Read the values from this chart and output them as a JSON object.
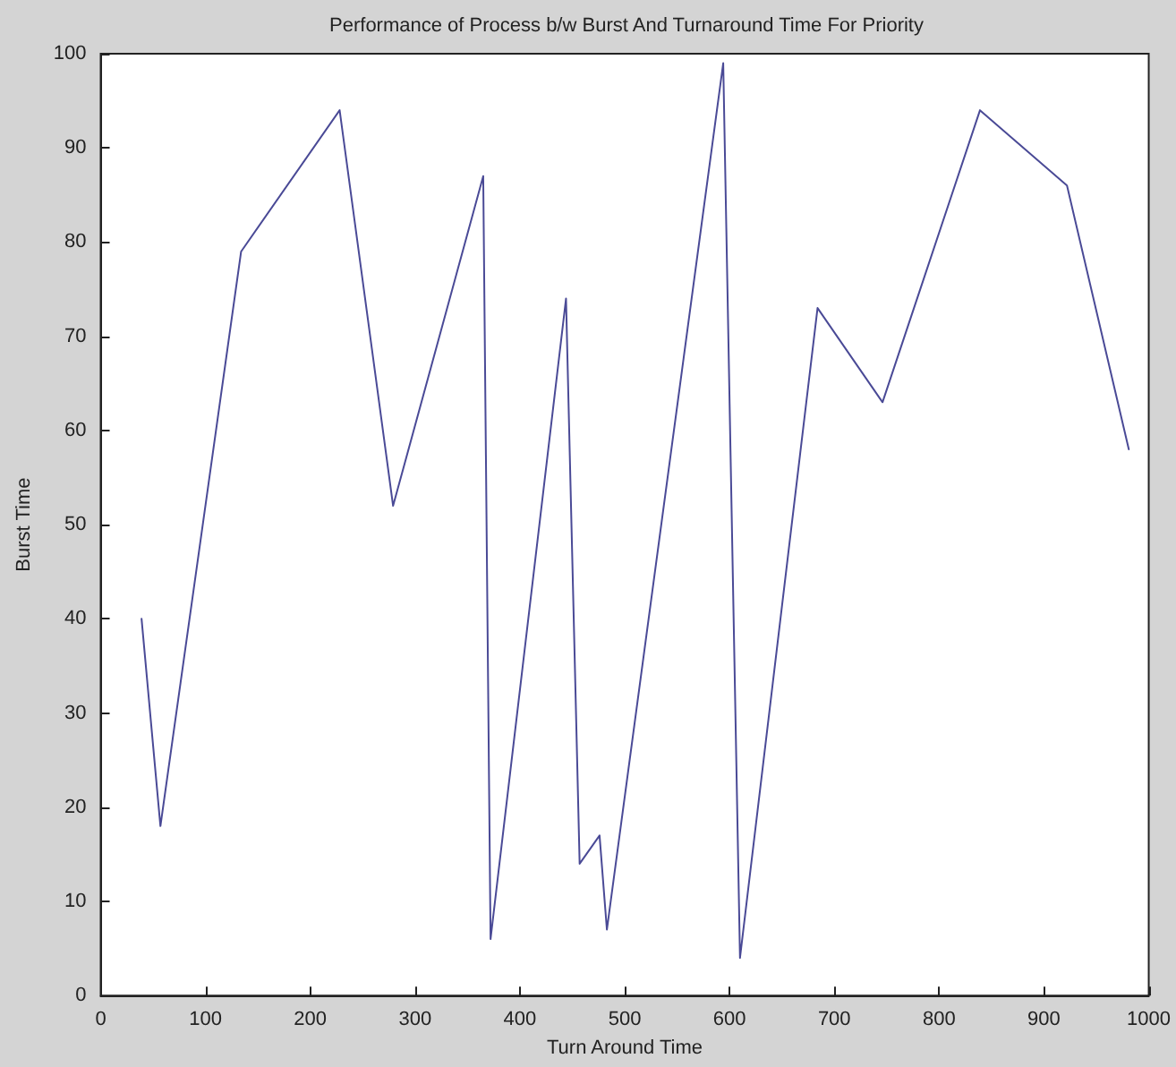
{
  "chart_data": {
    "type": "line",
    "title": "Performance of Process b/w Burst And Turnaround Time For Priority",
    "xlabel": "Turn Around Time",
    "ylabel": "Burst Time",
    "series": [
      {
        "color": "#4a4a96",
        "x": [
          39,
          57,
          134,
          228,
          279,
          365,
          372,
          444,
          457,
          476,
          483,
          594,
          610,
          684,
          746,
          839,
          922,
          981
        ],
        "values": [
          40,
          18,
          79,
          94,
          52,
          87,
          6,
          74,
          14,
          17,
          7,
          99,
          4,
          73,
          63,
          94,
          86,
          58
        ]
      }
    ],
    "xlim": [
      0,
      1000
    ],
    "xticks": [
      0,
      100,
      200,
      300,
      400,
      500,
      600,
      700,
      800,
      900,
      1000
    ],
    "ylim": [
      0,
      100
    ],
    "yticks": [
      0,
      10,
      20,
      30,
      40,
      50,
      60,
      70,
      80,
      90,
      100
    ],
    "grid": false,
    "marker": "none",
    "line_style": "solid"
  }
}
